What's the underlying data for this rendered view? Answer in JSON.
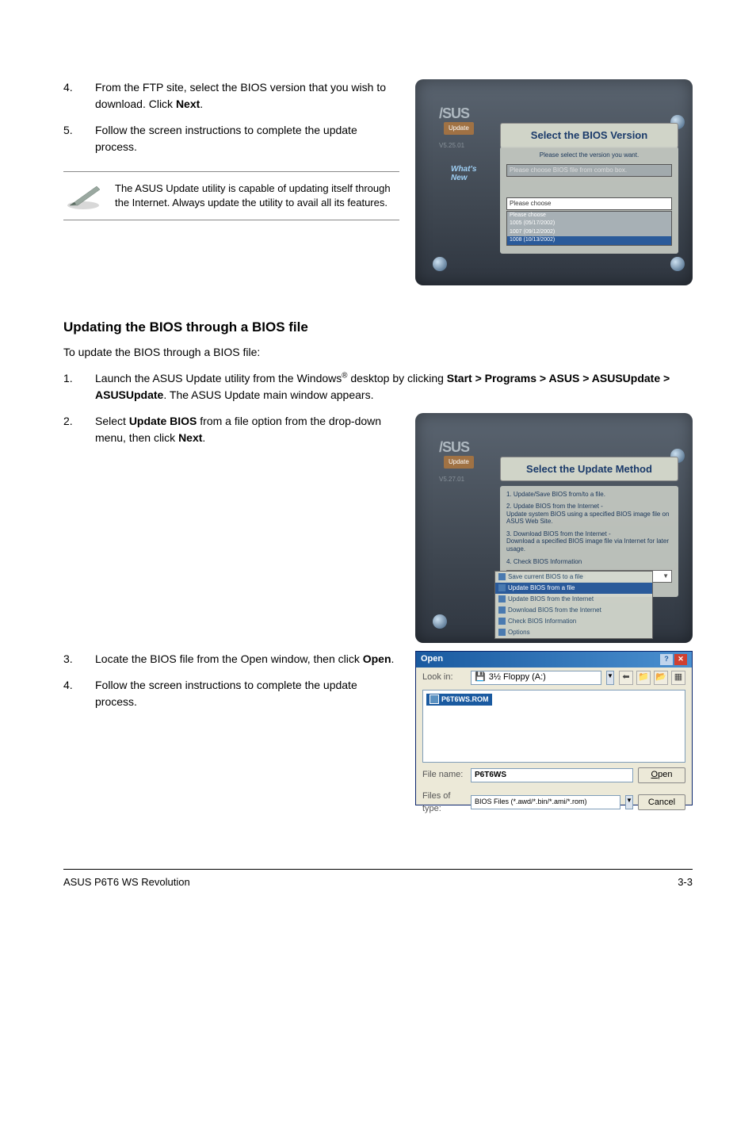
{
  "steps_top": [
    {
      "num": "4.",
      "parts": [
        {
          "t": "From the FTP site, select the BIOS version that you wish to download. Click "
        },
        {
          "t": "Next",
          "b": true
        },
        {
          "t": "."
        }
      ]
    },
    {
      "num": "5.",
      "parts": [
        {
          "t": "Follow the screen instructions to complete the update process."
        }
      ]
    }
  ],
  "note": "The ASUS Update utility is capable of updating itself through the Internet. Always update the utility to avail all its features.",
  "section_heading": "Updating the BIOS through a BIOS file",
  "section_intro": "To update the BIOS through a BIOS file:",
  "steps_mid": [
    {
      "num": "1.",
      "parts": [
        {
          "t": "Launch the ASUS Update utility from the Windows"
        },
        {
          "t": "®",
          "sup": true
        },
        {
          "t": " desktop by clicking "
        },
        {
          "t": "Start > Programs > ASUS > ASUSUpdate > ASUSUpdate",
          "b": true
        },
        {
          "t": ". The ASUS Update main window appears."
        }
      ]
    },
    {
      "num": "2.",
      "parts": [
        {
          "t": "Select "
        },
        {
          "t": "Update BIOS",
          "b": true
        },
        {
          "t": " from a file option from the drop-down menu, then click "
        },
        {
          "t": "Next",
          "b": true
        },
        {
          "t": "."
        }
      ]
    }
  ],
  "steps_bot": [
    {
      "num": "3.",
      "parts": [
        {
          "t": "Locate the BIOS file from the Open window, then click "
        },
        {
          "t": "Open",
          "b": true
        },
        {
          "t": "."
        }
      ]
    },
    {
      "num": "4.",
      "parts": [
        {
          "t": "Follow the screen instructions to complete the update process."
        }
      ]
    }
  ],
  "shot1": {
    "logo": "/SUS",
    "tag": "Update",
    "ver": "V5.25.01",
    "title": "Select the BIOS Version",
    "body_line1": "Please select the version you want.",
    "body_combo": "Please choose BIOS file from combo box.",
    "selbox": "Please choose",
    "selbox_items": [
      "Please choose",
      "1005 (05/17/2002)",
      "1007 (09/12/2002)",
      "1008 (10/13/2002)"
    ],
    "whats": "What's\nNew"
  },
  "shot2": {
    "logo": "/SUS",
    "tag": "Update",
    "ver": "V5.27.01",
    "title": "Select the Update Method",
    "lines": [
      "1. Update/Save BIOS from/to a file.",
      "2. Update BIOS from the Internet -\n   Update system BIOS using a specified BIOS image file on ASUS Web Site.",
      "3. Download BIOS from the Internet -\n   Download a specified BIOS image file via Internet for later usage.",
      "4. Check BIOS Information"
    ],
    "combo_sel": "Update BIOS from a file",
    "dd": [
      "Save current BIOS to a file",
      "Update BIOS from a file",
      "Update BIOS from the Internet",
      "Download BIOS from the Internet",
      "Check BIOS Information",
      "Options"
    ]
  },
  "open_dialog": {
    "title": "Open",
    "lookin_label": "Look in:",
    "lookin_value": "3½ Floppy (A:)",
    "file": "P6T6WS.ROM",
    "filename_label": "File name:",
    "filename_value": "P6T6WS",
    "type_label": "Files of type:",
    "type_value": "BIOS Files (*.awd/*.bin/*.ami/*.rom)",
    "open_btn": "Open",
    "cancel_btn": "Cancel"
  },
  "footer_left": "ASUS P6T6 WS Revolution",
  "footer_right": "3-3"
}
